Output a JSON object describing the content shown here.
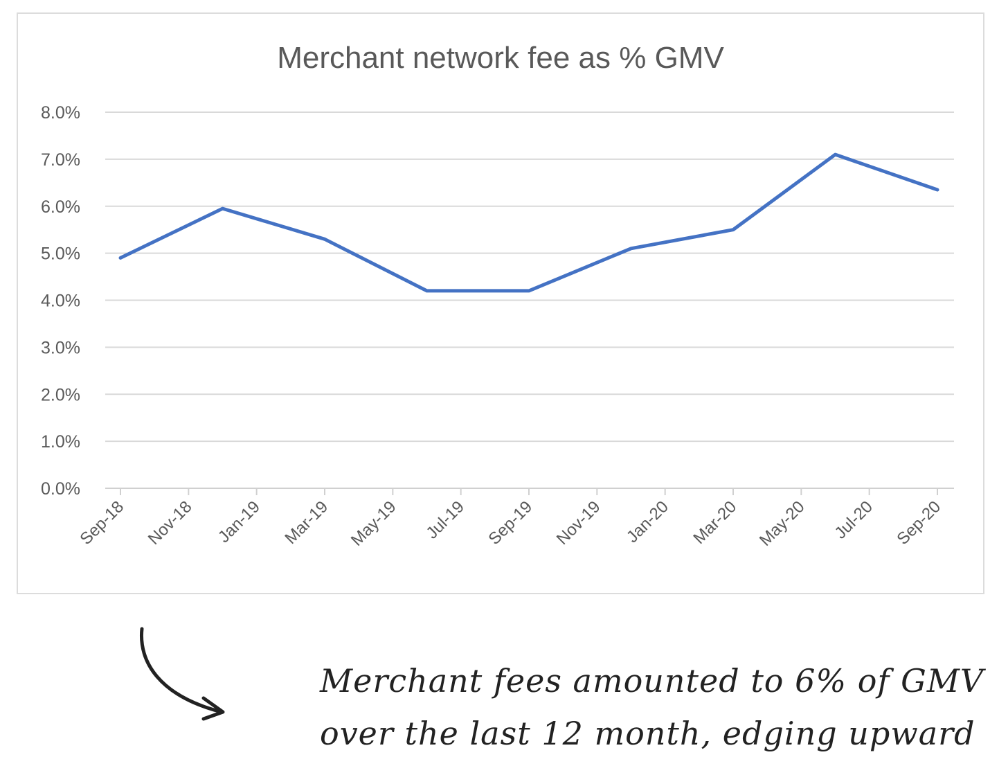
{
  "chart_data": {
    "type": "line",
    "title": "Merchant network fee as % GMV",
    "xlabel": "",
    "ylabel": "",
    "categories": [
      "Sep-18",
      "Nov-18",
      "Jan-19",
      "Mar-19",
      "May-19",
      "Jul-19",
      "Sep-19",
      "Nov-19",
      "Jan-20",
      "Mar-20",
      "May-20",
      "Jul-20",
      "Sep-20"
    ],
    "yticks": [
      "0.0%",
      "1.0%",
      "2.0%",
      "3.0%",
      "4.0%",
      "5.0%",
      "6.0%",
      "7.0%",
      "8.0%"
    ],
    "ylim": [
      0,
      8
    ],
    "grid": true,
    "legend": "none",
    "series": [
      {
        "color": "#4472c4",
        "points": [
          {
            "x": "Sep-18",
            "y": 4.9
          },
          {
            "x": "Dec-18",
            "y": 5.95
          },
          {
            "x": "Mar-19",
            "y": 5.3
          },
          {
            "x": "Jun-19",
            "y": 4.2
          },
          {
            "x": "Sep-19",
            "y": 4.2
          },
          {
            "x": "Dec-19",
            "y": 5.1
          },
          {
            "x": "Mar-20",
            "y": 5.5
          },
          {
            "x": "Jun-20",
            "y": 7.1
          },
          {
            "x": "Sep-20",
            "y": 6.35
          }
        ]
      }
    ]
  },
  "annotation": {
    "line1": "Merchant fees amounted to 6% of GMV",
    "line2": "over the last 12 month, edging upward"
  },
  "colors": {
    "series": "#4472c4",
    "text": "#595959",
    "grid": "#d9d9d9"
  },
  "icons": {
    "arrow": "curved-arrow-icon"
  }
}
